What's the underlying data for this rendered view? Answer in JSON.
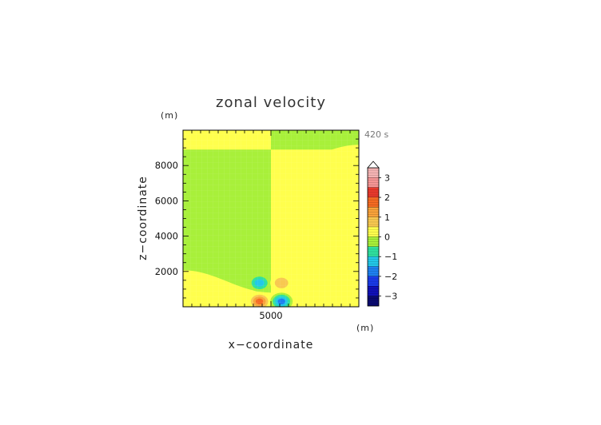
{
  "chart_data": {
    "type": "heatmap",
    "title": "zonal velocity",
    "xlabel": "x−coordinate",
    "ylabel": "z−coordinate",
    "x_unit": "(m)",
    "y_unit": "(m)",
    "time_label": "420 s",
    "xlim": [
      0,
      10000
    ],
    "ylim": [
      0,
      10000
    ],
    "x_ticks": [
      {
        "value": 5000,
        "label": "5000"
      }
    ],
    "y_ticks": [
      {
        "value": 2000,
        "label": "2000"
      },
      {
        "value": 4000,
        "label": "4000"
      },
      {
        "value": 6000,
        "label": "6000"
      },
      {
        "value": 8000,
        "label": "8000"
      }
    ],
    "colorbar": {
      "range": [
        -3.5,
        3.5
      ],
      "extend": "max",
      "labels": [
        {
          "value": 3,
          "label": "3"
        },
        {
          "value": 2,
          "label": "2"
        },
        {
          "value": 1,
          "label": "1"
        },
        {
          "value": 0,
          "label": "0"
        },
        {
          "value": -1,
          "label": "−1"
        },
        {
          "value": -2,
          "label": "−2"
        },
        {
          "value": -3,
          "label": "−3"
        }
      ],
      "bands": [
        {
          "from": 3.0,
          "to": 3.5,
          "color": "#f4b3b3"
        },
        {
          "from": 2.5,
          "to": 3.0,
          "color": "#f59595"
        },
        {
          "from": 2.0,
          "to": 2.5,
          "color": "#e8392c"
        },
        {
          "from": 1.5,
          "to": 2.0,
          "color": "#f46a22"
        },
        {
          "from": 1.0,
          "to": 1.5,
          "color": "#f8a23a"
        },
        {
          "from": 0.5,
          "to": 1.0,
          "color": "#f8c850"
        },
        {
          "from": 0.0,
          "to": 0.5,
          "color": "#ffff4d"
        },
        {
          "from": -0.5,
          "to": 0.0,
          "color": "#a8f03a"
        },
        {
          "from": -1.0,
          "to": -0.5,
          "color": "#2fe0a0"
        },
        {
          "from": -1.5,
          "to": -1.0,
          "color": "#23c8e8"
        },
        {
          "from": -2.0,
          "to": -1.5,
          "color": "#1e80f0"
        },
        {
          "from": -2.5,
          "to": -2.0,
          "color": "#1a3ae8"
        },
        {
          "from": -3.0,
          "to": -2.5,
          "color": "#1010b8"
        },
        {
          "from": -3.5,
          "to": -3.0,
          "color": "#0a0a70"
        }
      ]
    },
    "field": {
      "background_regions": [
        {
          "x": [
            0,
            5000
          ],
          "z": [
            8900,
            10000
          ],
          "value": 0.2
        },
        {
          "x": [
            5000,
            10000
          ],
          "z": [
            8900,
            10000
          ],
          "value": -0.2
        },
        {
          "x": [
            0,
            5000
          ],
          "z": [
            1800,
            8900
          ],
          "value": -0.2
        },
        {
          "x": [
            5000,
            10000
          ],
          "z": [
            1800,
            8900
          ],
          "value": 0.2
        }
      ],
      "features": [
        {
          "x": 4350,
          "z": 1350,
          "value": -1.8
        },
        {
          "x": 5600,
          "z": 1350,
          "value": 1.2
        },
        {
          "x": 4350,
          "z": 300,
          "value": 2.2
        },
        {
          "x": 5600,
          "z": 300,
          "value": -2.2
        }
      ]
    }
  }
}
